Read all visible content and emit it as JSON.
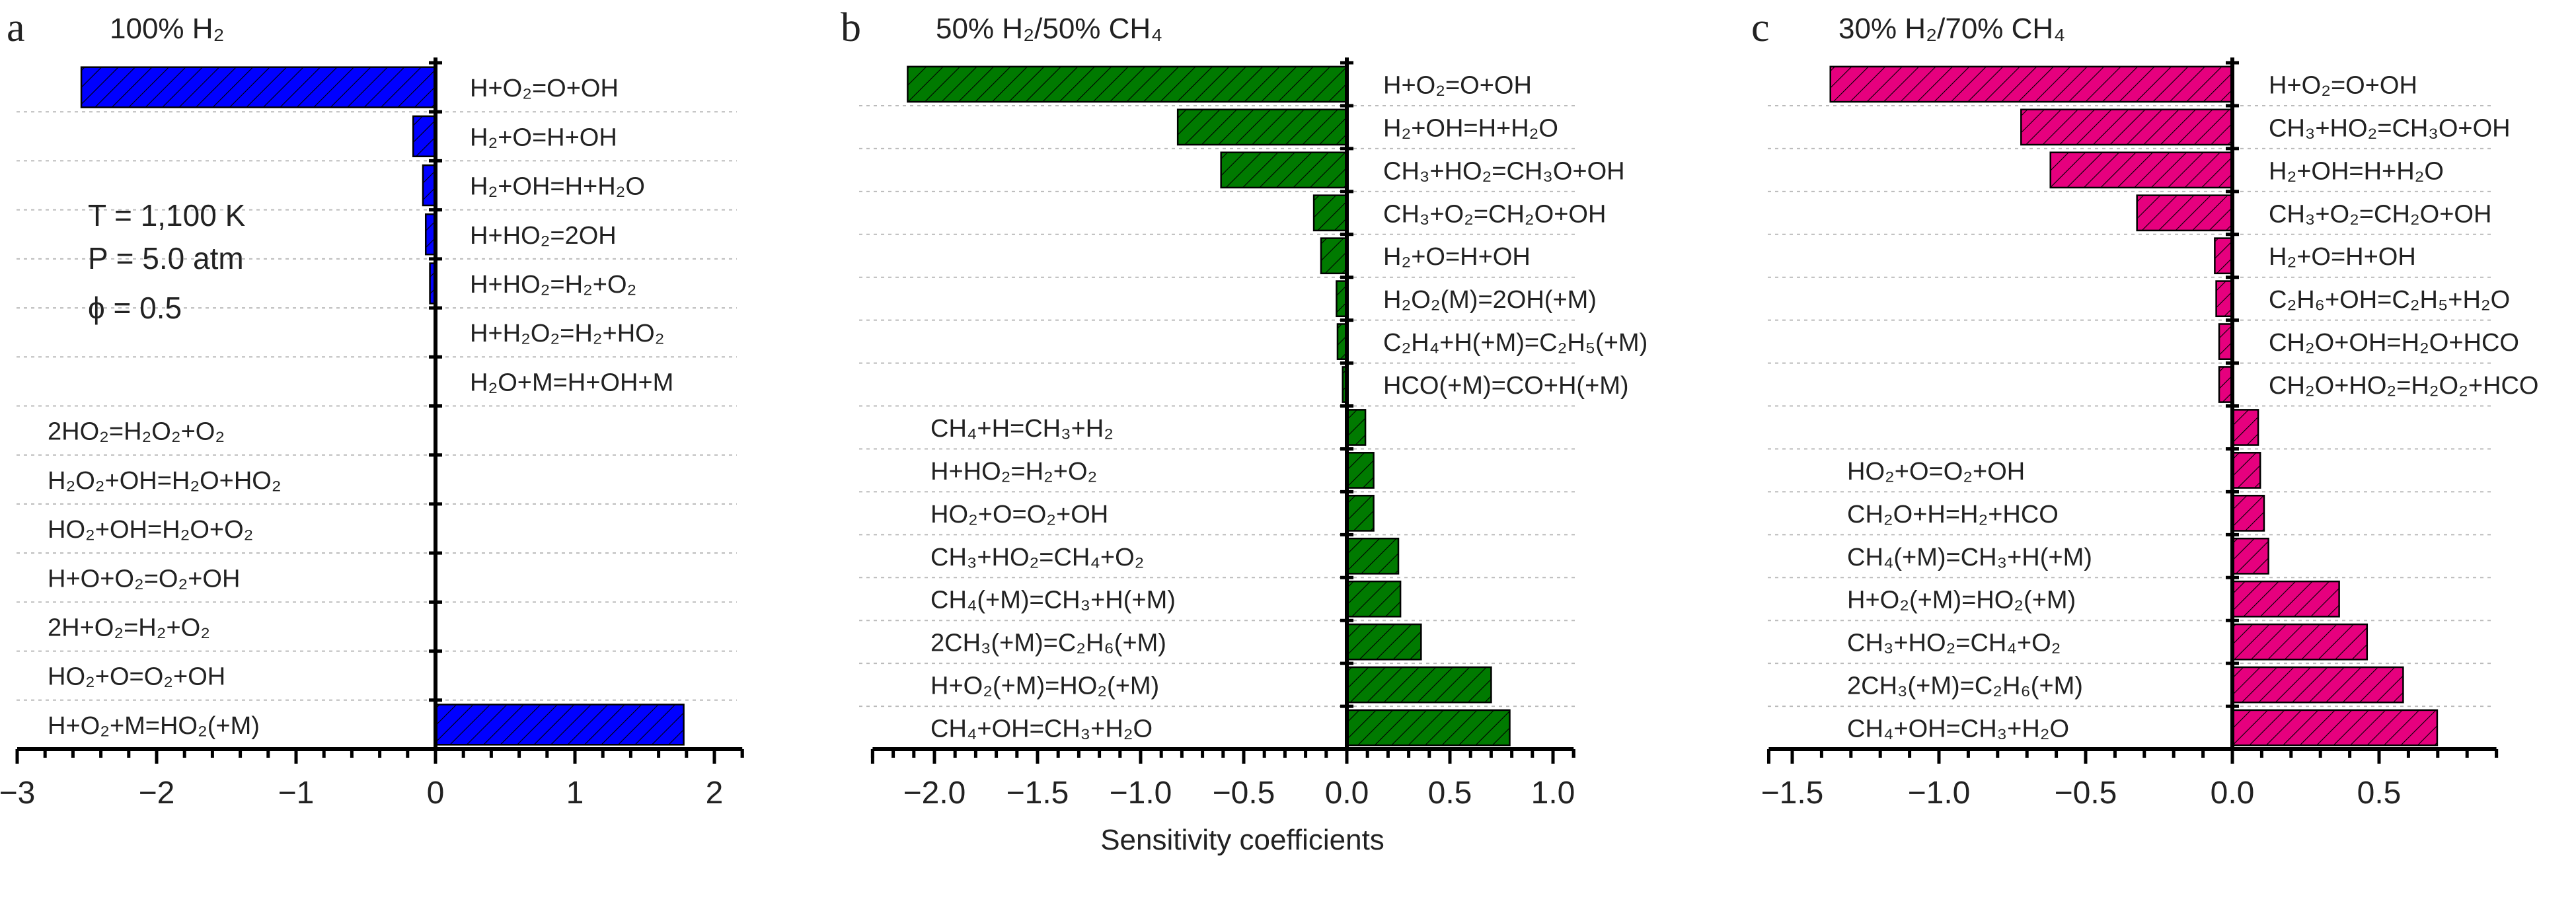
{
  "chart_data": [
    {
      "type": "bar",
      "orientation": "horizontal",
      "panel_letter": "a",
      "title": "100% H₂",
      "color": "#0000ff",
      "pattern": "diagonal-hatch",
      "xlim": [
        -3,
        2.2
      ],
      "xticks": [
        -3,
        -2,
        -1,
        0,
        1,
        2
      ],
      "xtick_labels": [
        "−3",
        "−2",
        "−1",
        "0",
        "1",
        "2"
      ],
      "annotations": [
        "T = 1,100 K",
        "P = 5.0 atm",
        "ϕ = 0.5"
      ],
      "grid": "dotted horizontal",
      "categories": [
        "H+O₂=O+OH",
        "H₂+O=H+OH",
        "H₂+OH=H+H₂O",
        "H+HO₂=2OH",
        "H+HO₂=H₂+O₂",
        "H+H₂O₂=H₂+HO₂",
        "H₂O+M=H+OH+M",
        "2HO₂=H₂O₂+O₂",
        "H₂O₂+OH=H₂O+HO₂",
        "HO₂+OH=H₂O+O₂",
        "H+O+O₂=O₂+OH",
        "2H+O₂=H₂+O₂",
        "HO₂+O=O₂+OH",
        "H+O₂+M=HO₂(+M)"
      ],
      "values": [
        -2.54,
        -0.16,
        -0.09,
        -0.07,
        -0.04,
        -0.005,
        -0.003,
        0.002,
        0.002,
        0.002,
        0.002,
        0.002,
        0.003,
        1.78
      ]
    },
    {
      "type": "bar",
      "orientation": "horizontal",
      "panel_letter": "b",
      "title": "50% H₂/50% CH₄",
      "color": "#007a00",
      "pattern": "diagonal-hatch",
      "xlim": [
        -2.3,
        1.1
      ],
      "xticks": [
        -2.0,
        -1.5,
        -1.0,
        -0.5,
        0.0,
        0.5,
        1.0
      ],
      "xtick_labels": [
        "−2.0",
        "−1.5",
        "−1.0",
        "−0.5",
        "0.0",
        "0.5",
        "1.0"
      ],
      "xlabel": "Sensitivity coefficients",
      "grid": "dotted horizontal",
      "categories": [
        "H+O₂=O+OH",
        "H₂+OH=H+H₂O",
        "CH₃+HO₂=CH₃O+OH",
        "CH₃+O₂=CH₂O+OH",
        "H₂+O=H+OH",
        "H₂O₂(M)=2OH(+M)",
        "C₂H₄+H(+M)=C₂H₅(+M)",
        "HCO(+M)=CO+H(+M)",
        "CH₄+H=CH₃+H₂",
        "H+HO₂=H₂+O₂",
        "HO₂+O=O₂+OH",
        "CH₃+HO₂=CH₄+O₂",
        "CH₄(+M)=CH₃+H(+M)",
        "2CH₃(+M)=C₂H₆(+M)",
        "H+O₂(+M)=HO₂(+M)",
        "CH₄+OH=CH₃+H₂O"
      ],
      "values": [
        -2.13,
        -0.82,
        -0.61,
        -0.16,
        -0.125,
        -0.05,
        -0.045,
        -0.02,
        0.09,
        0.13,
        0.13,
        0.25,
        0.26,
        0.36,
        0.7,
        0.79
      ]
    },
    {
      "type": "bar",
      "orientation": "horizontal",
      "panel_letter": "c",
      "title": "30% H₂/70% CH₄",
      "color": "#e6007e",
      "pattern": "diagonal-hatch",
      "xlim": [
        -1.58,
        0.9
      ],
      "xticks": [
        -1.5,
        -1.0,
        -0.5,
        0.0,
        0.5
      ],
      "xtick_labels": [
        "−1.5",
        "−1.0",
        "−0.5",
        "0.0",
        "0.5"
      ],
      "grid": "dotted horizontal",
      "categories": [
        "H+O₂=O+OH",
        "CH₃+HO₂=CH₃O+OH",
        "H₂+OH=H+H₂O",
        "CH₃+O₂=CH₂O+OH",
        "H₂+O=H+OH",
        "C₂H₆+OH=C₂H₅+H₂O",
        "CH₂O+OH=H₂O+HCO",
        "CH₂O+HO₂=H₂O₂+HCO",
        "",
        "HO₂+O=O₂+OH",
        "CH₂O+H=H₂+HCO",
        "CH₄(+M)=CH₃+H(+M)",
        "H+O₂(+M)=HO₂(+M)",
        "CH₃+HO₂=CH₄+O₂",
        "2CH₃(+M)=C₂H₆(+M)",
        "CH₄+OH=CH₃+H₂O"
      ],
      "values": [
        -1.37,
        -0.72,
        -0.62,
        -0.325,
        -0.06,
        -0.055,
        -0.045,
        -0.045,
        0.088,
        0.095,
        0.108,
        0.123,
        0.364,
        0.459,
        0.582,
        0.698
      ]
    }
  ]
}
